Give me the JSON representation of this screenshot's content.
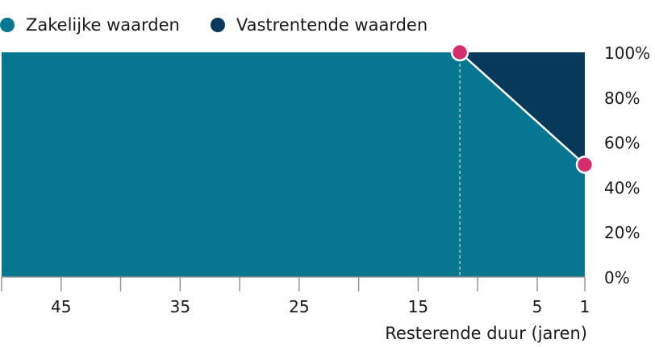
{
  "chart_data": {
    "type": "area",
    "x_direction": "decreasing-left-to-right",
    "xlim": [
      50,
      1
    ],
    "ylim": [
      0,
      100
    ],
    "xlabel": "Resterende duur (jaren)",
    "ylabel": "",
    "x_tick_labels": [
      45,
      35,
      25,
      15,
      5,
      1
    ],
    "x_tick_marks": [
      50,
      45,
      40,
      35,
      30,
      25,
      20,
      15,
      10,
      5,
      1
    ],
    "y_ticks": [
      0,
      20,
      40,
      60,
      80,
      100
    ],
    "y_tick_suffix": "%",
    "y_axis_position": "right",
    "legend_position": "top-left",
    "series": [
      {
        "name": "Zakelijke waarden",
        "color": "#077791",
        "points": [
          {
            "x": 50,
            "y": 100
          },
          {
            "x": 11.5,
            "y": 100
          },
          {
            "x": 1,
            "y": 50
          }
        ]
      },
      {
        "name": "Vastrentende waarden",
        "color": "#08395a",
        "points": [
          {
            "x": 50,
            "y": 0
          },
          {
            "x": 11.5,
            "y": 0
          },
          {
            "x": 1,
            "y": 50
          }
        ]
      }
    ],
    "markers": [
      {
        "x": 11.5,
        "y": 100
      },
      {
        "x": 1,
        "y": 50
      }
    ],
    "marker_color": "#d42f6c",
    "reference_line_x": 11.5
  }
}
